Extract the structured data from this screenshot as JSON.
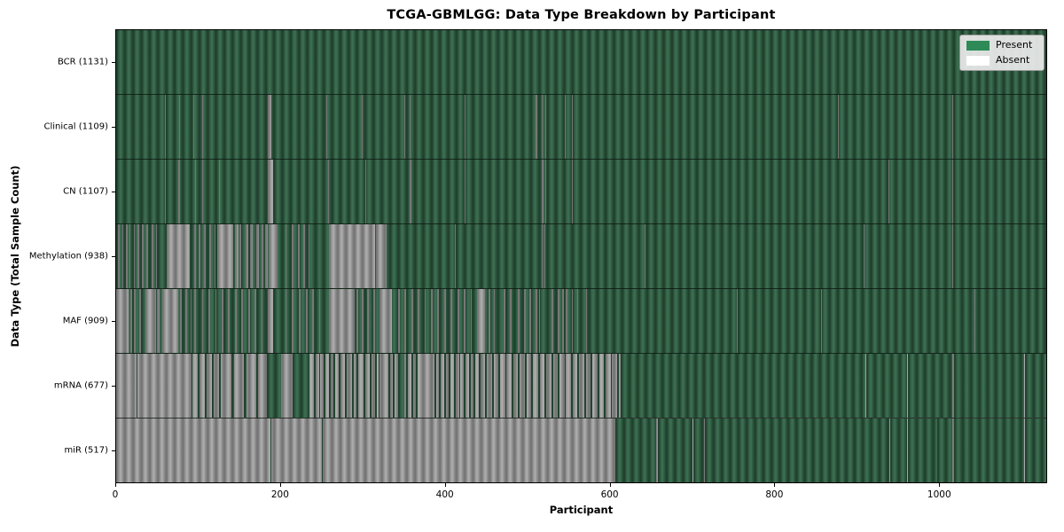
{
  "title": "TCGA-GBMLGG: Data Type Breakdown by Participant",
  "xlabel": "Participant",
  "ylabel": "Data Type (Total Sample Count)",
  "legend": {
    "present_label": "Present",
    "absent_label": "Absent",
    "present_color": "#2e8b57",
    "absent_color": "#ffffff"
  },
  "colors": {
    "present_bar": "#2e5a41",
    "present_edge": "#20412d",
    "absent_bar": "#9a9a9a",
    "absent_edge": "#757575",
    "background": "#ffffff",
    "axis": "#000000"
  },
  "chart_data": {
    "type": "heatmap",
    "title": "TCGA-GBMLGG: Data Type Breakdown by Participant",
    "xlabel": "Participant",
    "ylabel": "Data Type (Total Sample Count)",
    "xlim": [
      0,
      1131
    ],
    "x_ticks": [
      0,
      200,
      400,
      600,
      800,
      1000
    ],
    "grid": false,
    "legend_position": "upper right",
    "legend_entries": [
      "Present",
      "Absent"
    ],
    "value_states": {
      "present": 1,
      "absent": 0
    },
    "rows": [
      {
        "name": "BCR",
        "label": "BCR (1131)",
        "present_count": 1131,
        "absent_count": 0,
        "base": "present",
        "inverse_runs": []
      },
      {
        "name": "Clinical",
        "label": "Clinical (1109)",
        "present_count": 1109,
        "absent_count": 22,
        "base": "present",
        "inverse_runs": [
          [
            59,
            60
          ],
          [
            76,
            78
          ],
          [
            94,
            95
          ],
          [
            104,
            105
          ],
          [
            184,
            188
          ],
          [
            255,
            256
          ],
          [
            298,
            299
          ],
          [
            350,
            351
          ],
          [
            356,
            357
          ],
          [
            423,
            424
          ],
          [
            509,
            511
          ],
          [
            517,
            518
          ],
          [
            521,
            522
          ],
          [
            544,
            545
          ],
          [
            553,
            554
          ],
          [
            876,
            877
          ],
          [
            1015,
            1016
          ]
        ]
      },
      {
        "name": "CN",
        "label": "CN (1107)",
        "present_count": 1107,
        "absent_count": 24,
        "base": "present",
        "inverse_runs": [
          [
            59,
            60
          ],
          [
            75,
            78
          ],
          [
            96,
            97
          ],
          [
            104,
            105
          ],
          [
            125,
            126
          ],
          [
            184,
            190
          ],
          [
            257,
            258
          ],
          [
            302,
            303
          ],
          [
            356,
            358
          ],
          [
            423,
            424
          ],
          [
            517,
            519
          ],
          [
            521,
            522
          ],
          [
            553,
            554
          ],
          [
            937,
            938
          ],
          [
            1015,
            1016
          ]
        ]
      },
      {
        "name": "Methylation",
        "label": "Methylation (938)",
        "present_count": 938,
        "absent_count": 193,
        "base": "present",
        "inverse_runs": [
          [
            2,
            4
          ],
          [
            7,
            9
          ],
          [
            12,
            14
          ],
          [
            16,
            17
          ],
          [
            21,
            23
          ],
          [
            26,
            28
          ],
          [
            31,
            33
          ],
          [
            37,
            39
          ],
          [
            43,
            45
          ],
          [
            48,
            50
          ],
          [
            61,
            89
          ],
          [
            95,
            97
          ],
          [
            100,
            102
          ],
          [
            107,
            109
          ],
          [
            113,
            115
          ],
          [
            119,
            121
          ],
          [
            123,
            142
          ],
          [
            144,
            148
          ],
          [
            150,
            152
          ],
          [
            157,
            160
          ],
          [
            163,
            166
          ],
          [
            170,
            173
          ],
          [
            176,
            179
          ],
          [
            181,
            184
          ],
          [
            185,
            196
          ],
          [
            205,
            207
          ],
          [
            213,
            215
          ],
          [
            221,
            223
          ],
          [
            227,
            229
          ],
          [
            233,
            235
          ],
          [
            258,
            314
          ],
          [
            315,
            328
          ],
          [
            411,
            412
          ],
          [
            516,
            517
          ],
          [
            520,
            521
          ],
          [
            641,
            642
          ],
          [
            907,
            908
          ],
          [
            1015,
            1016
          ]
        ]
      },
      {
        "name": "MAF",
        "label": "MAF (909)",
        "present_count": 909,
        "absent_count": 222,
        "base": "present",
        "inverse_runs": [
          [
            0,
            15
          ],
          [
            17,
            19
          ],
          [
            22,
            24
          ],
          [
            28,
            30
          ],
          [
            35,
            48
          ],
          [
            50,
            53
          ],
          [
            56,
            75
          ],
          [
            78,
            80
          ],
          [
            84,
            86
          ],
          [
            90,
            92
          ],
          [
            95,
            97
          ],
          [
            104,
            106
          ],
          [
            112,
            114
          ],
          [
            120,
            122
          ],
          [
            128,
            130
          ],
          [
            136,
            138
          ],
          [
            144,
            146
          ],
          [
            152,
            154
          ],
          [
            160,
            162
          ],
          [
            168,
            170
          ],
          [
            176,
            178
          ],
          [
            184,
            190
          ],
          [
            205,
            207
          ],
          [
            213,
            215
          ],
          [
            222,
            224
          ],
          [
            230,
            232
          ],
          [
            238,
            240
          ],
          [
            246,
            248
          ],
          [
            258,
            290
          ],
          [
            292,
            294
          ],
          [
            298,
            300
          ],
          [
            305,
            307
          ],
          [
            312,
            314
          ],
          [
            320,
            335
          ],
          [
            342,
            344
          ],
          [
            350,
            352
          ],
          [
            358,
            360
          ],
          [
            366,
            368
          ],
          [
            374,
            376
          ],
          [
            382,
            384
          ],
          [
            390,
            392
          ],
          [
            398,
            400
          ],
          [
            406,
            408
          ],
          [
            414,
            416
          ],
          [
            422,
            424
          ],
          [
            430,
            432
          ],
          [
            438,
            448
          ],
          [
            452,
            454
          ],
          [
            458,
            460
          ],
          [
            470,
            472
          ],
          [
            478,
            480
          ],
          [
            488,
            490
          ],
          [
            495,
            497
          ],
          [
            502,
            504
          ],
          [
            509,
            511
          ],
          [
            513,
            514
          ],
          [
            528,
            530
          ],
          [
            536,
            538
          ],
          [
            541,
            543
          ],
          [
            546,
            548
          ],
          [
            553,
            554
          ],
          [
            560,
            561
          ],
          [
            570,
            571
          ],
          [
            753,
            754
          ],
          [
            856,
            857
          ],
          [
            1042,
            1043
          ]
        ]
      },
      {
        "name": "mRNA",
        "label": "mRNA (677)",
        "present_count": 677,
        "absent_count": 454,
        "base": "absent",
        "inverse_runs": [
          [
            25,
            26
          ],
          [
            91,
            93
          ],
          [
            99,
            101
          ],
          [
            108,
            110
          ],
          [
            116,
            118
          ],
          [
            125,
            127
          ],
          [
            140,
            143
          ],
          [
            155,
            158
          ],
          [
            170,
            172
          ],
          [
            183,
            200
          ],
          [
            214,
            235
          ],
          [
            240,
            242
          ],
          [
            246,
            248
          ],
          [
            252,
            254
          ],
          [
            258,
            260
          ],
          [
            264,
            266
          ],
          [
            270,
            272
          ],
          [
            278,
            280
          ],
          [
            286,
            288
          ],
          [
            292,
            294
          ],
          [
            300,
            302
          ],
          [
            308,
            310
          ],
          [
            314,
            316
          ],
          [
            318,
            320
          ],
          [
            330,
            332
          ],
          [
            336,
            338
          ],
          [
            342,
            350
          ],
          [
            352,
            354
          ],
          [
            358,
            360
          ],
          [
            364,
            366
          ],
          [
            386,
            388
          ],
          [
            392,
            394
          ],
          [
            398,
            400
          ],
          [
            404,
            406
          ],
          [
            410,
            412
          ],
          [
            416,
            418
          ],
          [
            422,
            424
          ],
          [
            428,
            430
          ],
          [
            434,
            436
          ],
          [
            440,
            442
          ],
          [
            448,
            450
          ],
          [
            456,
            458
          ],
          [
            464,
            466
          ],
          [
            472,
            474
          ],
          [
            480,
            482
          ],
          [
            488,
            490
          ],
          [
            496,
            498
          ],
          [
            504,
            506
          ],
          [
            512,
            514
          ],
          [
            520,
            522
          ],
          [
            528,
            530
          ],
          [
            536,
            538
          ],
          [
            544,
            546
          ],
          [
            552,
            554
          ],
          [
            560,
            562
          ],
          [
            568,
            570
          ],
          [
            576,
            578
          ],
          [
            584,
            586
          ],
          [
            592,
            594
          ],
          [
            600,
            602
          ],
          [
            608,
            610
          ],
          [
            612,
            909
          ],
          [
            910,
            960
          ],
          [
            961,
            1015
          ],
          [
            1017,
            1102
          ],
          [
            1103,
            1131
          ]
        ]
      },
      {
        "name": "miR",
        "label": "miR (517)",
        "present_count": 517,
        "absent_count": 614,
        "base": "absent",
        "inverse_runs": [
          [
            187,
            188
          ],
          [
            250,
            251
          ],
          [
            606,
            655
          ],
          [
            657,
            700
          ],
          [
            701,
            713
          ],
          [
            714,
            938
          ],
          [
            939,
            960
          ],
          [
            961,
            996
          ],
          [
            997,
            1015
          ],
          [
            1017,
            1102
          ],
          [
            1103,
            1131
          ]
        ]
      }
    ]
  }
}
